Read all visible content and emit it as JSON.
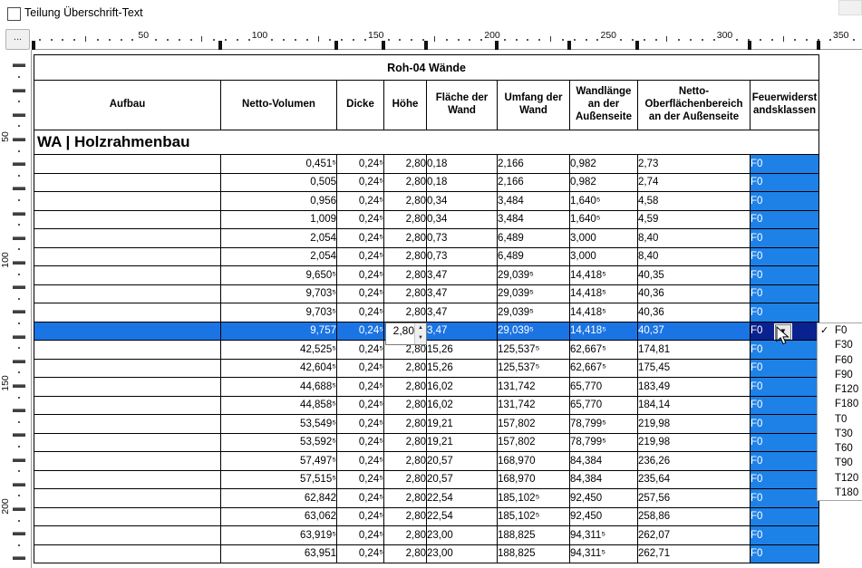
{
  "toolbar": {
    "split_header_checkbox_label": "Teilung Überschrift-Text",
    "checkbox_checked": false
  },
  "ruler": {
    "corner_button_label": "...",
    "top_labels": [
      "50",
      "100",
      "150",
      "200",
      "250",
      "300",
      "350"
    ],
    "left_labels": [
      "50",
      "100",
      "150",
      "200"
    ]
  },
  "table": {
    "title": "Roh-04 Wände",
    "group_header": "WA | Holzrahmenbau",
    "columns": [
      "Aufbau",
      "Netto-Volumen",
      "Dicke",
      "Höhe",
      "Fläche der Wand",
      "Umfang der Wand",
      "Wandlänge an der Außenseite",
      "Netto-Oberflächenbereich an der Außenseite",
      "Feuerwiderstandsklassen"
    ],
    "rows": [
      [
        "0,451⁵",
        "0,24⁵",
        "2,80",
        "0,18",
        "2,166",
        "0,982",
        "2,73",
        "F0"
      ],
      [
        "0,505",
        "0,24⁵",
        "2,80",
        "0,18",
        "2,166",
        "0,982",
        "2,74",
        "F0"
      ],
      [
        "0,956",
        "0,24⁵",
        "2,80",
        "0,34",
        "3,484",
        "1,640⁵",
        "4,58",
        "F0"
      ],
      [
        "1,009",
        "0,24⁵",
        "2,80",
        "0,34",
        "3,484",
        "1,640⁵",
        "4,59",
        "F0"
      ],
      [
        "2,054",
        "0,24⁵",
        "2,80",
        "0,73",
        "6,489",
        "3,000",
        "8,40",
        "F0"
      ],
      [
        "2,054",
        "0,24⁵",
        "2,80",
        "0,73",
        "6,489",
        "3,000",
        "8,40",
        "F0"
      ],
      [
        "9,650⁵",
        "0,24⁵",
        "2,80",
        "3,47",
        "29,039⁵",
        "14,418⁵",
        "40,35",
        "F0"
      ],
      [
        "9,703⁵",
        "0,24⁵",
        "2,80",
        "3,47",
        "29,039⁵",
        "14,418⁵",
        "40,36",
        "F0"
      ],
      [
        "9,703⁵",
        "0,24⁵",
        "2,80",
        "3,47",
        "29,039⁵",
        "14,418⁵",
        "40,36",
        "F0"
      ],
      [
        "9,757",
        "0,24⁵",
        "2,80",
        "3,47",
        "29,039⁵",
        "14,418⁵",
        "40,37",
        "F0"
      ],
      [
        "42,525⁵",
        "0,24⁵",
        "2,80",
        "15,26",
        "125,537⁵",
        "62,667⁵",
        "174,81",
        "F0"
      ],
      [
        "42,604⁵",
        "0,24⁵",
        "2,80",
        "15,26",
        "125,537⁵",
        "62,667⁵",
        "175,45",
        "F0"
      ],
      [
        "44,688⁵",
        "0,24⁵",
        "2,80",
        "16,02",
        "131,742",
        "65,770",
        "183,49",
        "F0"
      ],
      [
        "44,858⁵",
        "0,24⁵",
        "2,80",
        "16,02",
        "131,742",
        "65,770",
        "184,14",
        "F0"
      ],
      [
        "53,549⁵",
        "0,24⁵",
        "2,80",
        "19,21",
        "157,802",
        "78,799⁵",
        "219,98",
        "F0"
      ],
      [
        "53,592⁵",
        "0,24⁵",
        "2,80",
        "19,21",
        "157,802",
        "78,799⁵",
        "219,98",
        "F0"
      ],
      [
        "57,497⁵",
        "0,24⁵",
        "2,80",
        "20,57",
        "168,970",
        "84,384",
        "236,26",
        "F0"
      ],
      [
        "57,515⁵",
        "0,24⁵",
        "2,80",
        "20,57",
        "168,970",
        "84,384",
        "235,64",
        "F0"
      ],
      [
        "62,842",
        "0,24⁵",
        "2,80",
        "22,54",
        "185,102⁵",
        "92,450",
        "257,56",
        "F0"
      ],
      [
        "63,062",
        "0,24⁵",
        "2,80",
        "22,54",
        "185,102⁵",
        "92,450",
        "258,86",
        "F0"
      ],
      [
        "63,919⁵",
        "0,24⁵",
        "2,80",
        "23,00",
        "188,825",
        "94,311⁵",
        "262,07",
        "F0"
      ],
      [
        "63,951",
        "0,24⁵",
        "2,80",
        "23,00",
        "188,825",
        "94,311⁵",
        "262,71",
        "F0"
      ]
    ],
    "selected_row_index": 9,
    "spinbox_value": "2,80",
    "colors": {
      "fire_cell": "#1e81e8",
      "selection": "#1b74e4",
      "selected_fire_cell": "#0a2190"
    }
  },
  "dropdown": {
    "selected": "F0",
    "check_icon": "✓",
    "items": [
      "F0",
      "F30",
      "F60",
      "F90",
      "F120",
      "F180",
      "T0",
      "T30",
      "T60",
      "T90",
      "T120",
      "T180"
    ]
  }
}
